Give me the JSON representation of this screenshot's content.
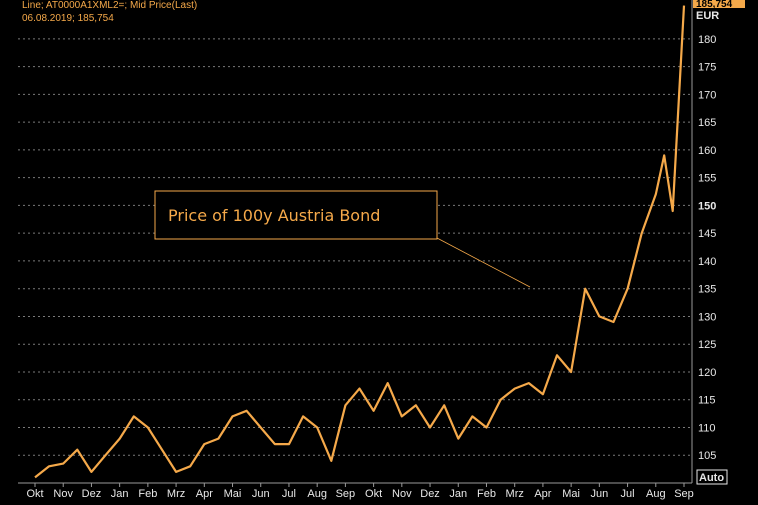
{
  "header": {
    "line1": "Line; AT0000A1XML2=; Mid Price(Last)",
    "line2": "06.08.2019; 185,754"
  },
  "right_axis": {
    "current_value_badge": "185,754",
    "currency": "EUR",
    "auto_label": "Auto"
  },
  "annotation": "Price of 100y Austria Bond",
  "colors": {
    "series": "#f5a94a",
    "background": "#000000",
    "grid": "#7a7a7a",
    "text": "#e8e8e8",
    "badge": "#f5a94a"
  },
  "chart_data": {
    "type": "line",
    "title": "",
    "xlabel": "",
    "ylabel": "EUR",
    "x_tick_labels": [
      "Okt",
      "Nov",
      "Dez",
      "Jan",
      "Feb",
      "Mrz",
      "Apr",
      "Mai",
      "Jun",
      "Jul",
      "Aug",
      "Sep",
      "Okt",
      "Nov",
      "Dez",
      "Jan",
      "Feb",
      "Mrz",
      "Apr",
      "Mai",
      "Jun",
      "Jul",
      "Aug",
      "Sep"
    ],
    "y_ticks": [
      105,
      110,
      115,
      120,
      125,
      130,
      135,
      140,
      145,
      150,
      155,
      160,
      165,
      170,
      175,
      180
    ],
    "ylim": [
      100,
      187
    ],
    "grid": true,
    "series": [
      {
        "name": "AT0000A1XML2=",
        "color": "#f5a94a",
        "x": [
          0,
          0.5,
          1,
          1.5,
          2,
          2.5,
          3,
          3.5,
          4,
          4.5,
          5,
          5.5,
          6,
          6.5,
          7,
          7.5,
          8,
          8.5,
          9,
          9.5,
          10,
          10.5,
          11,
          11.5,
          12,
          12.5,
          13,
          13.5,
          14,
          14.5,
          15,
          15.5,
          16,
          16.5,
          17,
          17.5,
          18,
          18.5,
          19,
          19.5,
          20,
          20.5,
          21,
          21.5,
          22,
          22.3,
          22.6,
          23
        ],
        "values": [
          101,
          103,
          103.5,
          106,
          102,
          105,
          108,
          112,
          110,
          106,
          102,
          103,
          107,
          108,
          112,
          113,
          110,
          107,
          107,
          112,
          110,
          104,
          114,
          117,
          113,
          118,
          112,
          114,
          110,
          114,
          108,
          112,
          110,
          115,
          117,
          118,
          116,
          123,
          120,
          135,
          130,
          129,
          135,
          145,
          152,
          159,
          149,
          186
        ]
      }
    ]
  }
}
